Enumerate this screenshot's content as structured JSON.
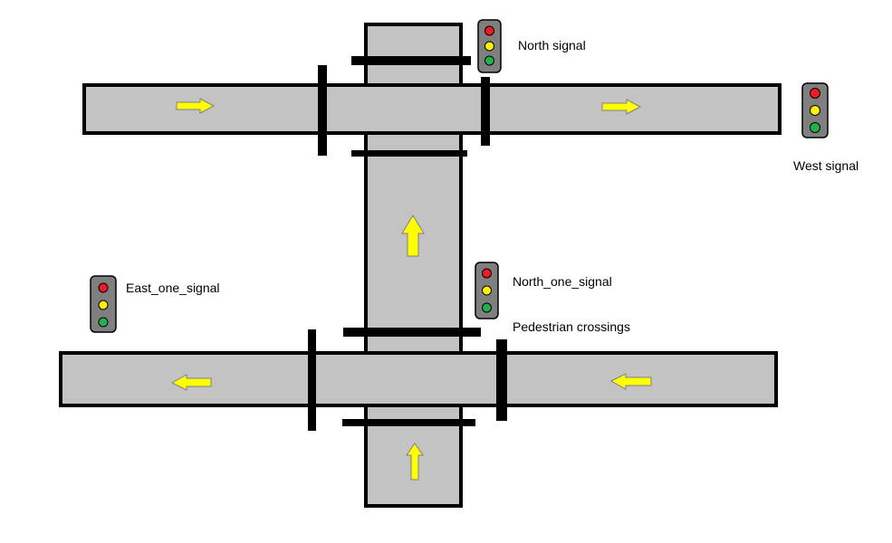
{
  "labels": {
    "north_signal": "North signal",
    "west_signal": "West signal",
    "east_one_signal": "East_one_signal",
    "north_one_signal": "North_one_signal",
    "pedestrian_crossings": "Pedestrian crossings"
  },
  "signal_colors": {
    "housing": "#7f7f7f",
    "red": "#ed1c24",
    "yellow": "#fff200",
    "green": "#22b14c"
  },
  "road_color": "#c3c3c3",
  "arrow_color": "#ffff00",
  "arrow_directions": {
    "top_road": "east",
    "vertical_road": "north",
    "bottom_road": "west"
  }
}
